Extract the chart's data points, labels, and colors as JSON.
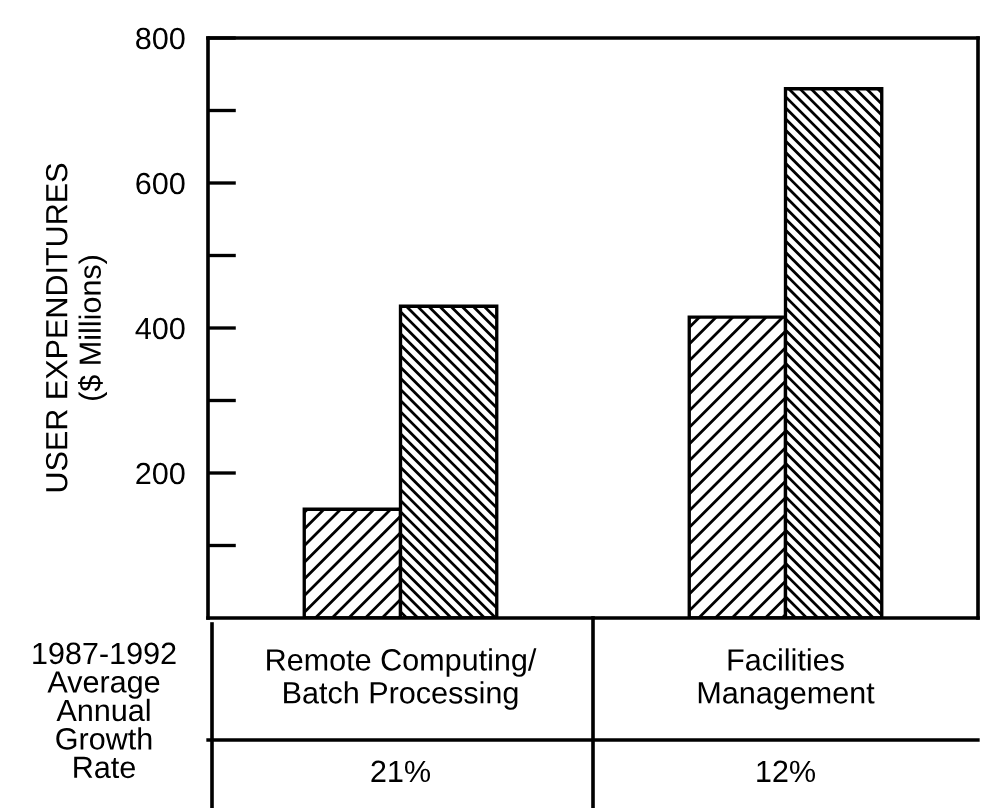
{
  "chart_data": {
    "type": "bar",
    "ylabel": "USER EXPENDITURES\n($ Millions)",
    "categories": [
      "Remote Computing/\nBatch Processing",
      "Facilities\nManagement"
    ],
    "series": [
      {
        "color": "#000000",
        "values": [
          150,
          415
        ]
      },
      {
        "color": "#000000",
        "values": [
          430,
          730
        ]
      }
    ],
    "ylim": [
      0,
      800
    ],
    "yticks": [
      {
        "value": 100,
        "label": null
      },
      200,
      {
        "value": 300,
        "label": null
      },
      400,
      {
        "value": 500,
        "label": null
      },
      600,
      {
        "value": 700,
        "label": null
      },
      800
    ],
    "grid": false,
    "legend": false,
    "annotations": [
      "1987-1992\nAverage\nAnnual\nGrowth\nRate",
      "21%",
      "12%"
    ]
  }
}
